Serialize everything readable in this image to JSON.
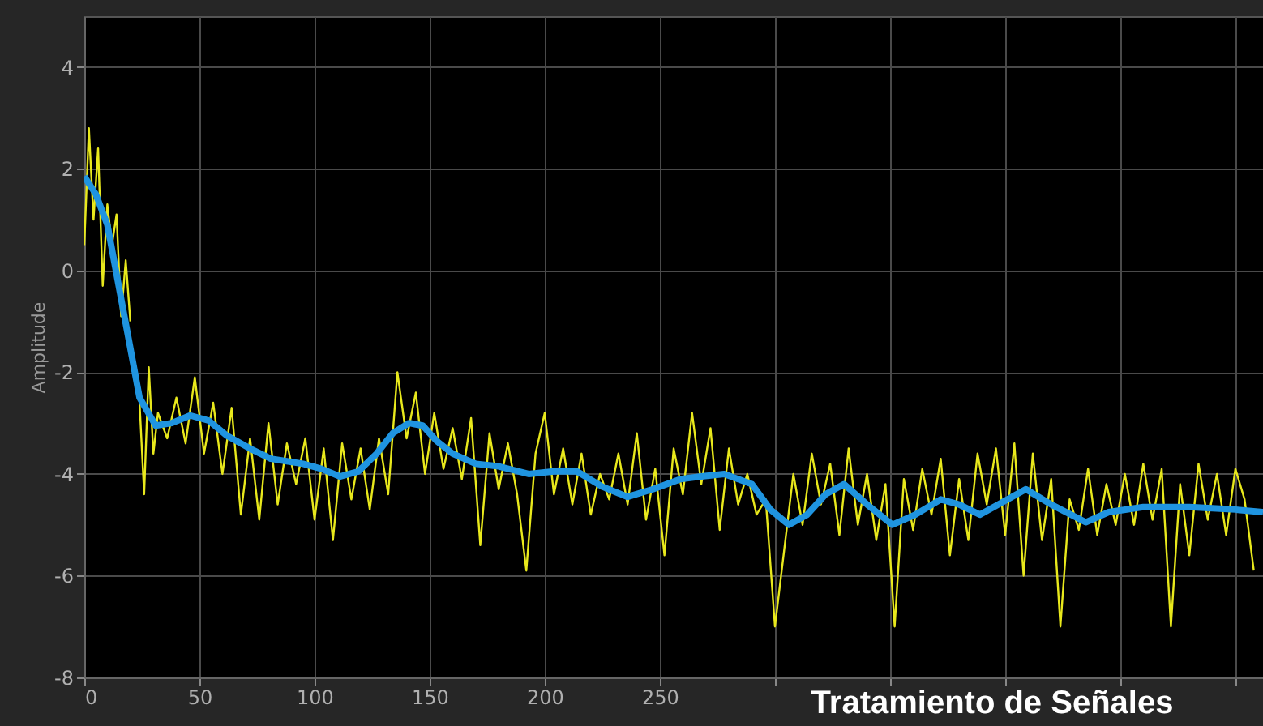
{
  "chart_data": {
    "type": "line",
    "ylabel": "Amplitude",
    "annotations": [
      "Tratamiento de Señales"
    ],
    "xlim": [
      0,
      512
    ],
    "ylim": [
      -8,
      5
    ],
    "xticks": [
      0,
      50,
      100,
      150,
      200,
      250,
      {
        "value": 300,
        "label": null
      },
      {
        "value": 350,
        "label": null
      },
      {
        "value": 400,
        "label": null
      },
      {
        "value": 450,
        "label": null
      },
      {
        "value": 500,
        "label": null
      }
    ],
    "yticks": [
      -8,
      -6,
      -4,
      -2,
      0,
      2,
      4
    ],
    "grid": true,
    "line_style": "solid",
    "series": [
      {
        "color": "#e8e81c",
        "x": [
          0,
          2,
          4,
          6,
          8,
          10,
          12,
          14,
          16,
          18,
          20,
          22,
          24,
          26,
          28,
          30,
          32,
          36,
          40,
          44,
          48,
          52,
          56,
          60,
          64,
          68,
          72,
          76,
          80,
          84,
          88,
          92,
          96,
          100,
          104,
          108,
          112,
          116,
          120,
          124,
          128,
          132,
          136,
          140,
          144,
          148,
          152,
          156,
          160,
          164,
          168,
          172,
          176,
          180,
          184,
          188,
          192,
          196,
          200,
          204,
          208,
          212,
          216,
          220,
          224,
          228,
          232,
          236,
          240,
          244,
          248,
          252,
          256,
          260,
          264,
          268,
          272,
          276,
          280,
          284,
          288,
          292,
          296,
          300,
          304,
          308,
          312,
          316,
          320,
          324,
          328,
          332,
          336,
          340,
          344,
          348,
          352,
          356,
          360,
          364,
          368,
          372,
          376,
          380,
          384,
          388,
          392,
          396,
          400,
          404,
          408,
          412,
          416,
          420,
          424,
          428,
          432,
          436,
          440,
          444,
          448,
          452,
          456,
          460,
          464,
          468,
          472,
          476,
          480,
          484,
          488,
          492,
          496,
          500,
          504,
          508
        ],
        "values": [
          0.5,
          2.8,
          1.0,
          2.4,
          -0.3,
          1.3,
          0.5,
          1.1,
          -0.9,
          0.2,
          -1.0,
          null,
          -2.6,
          -4.4,
          -1.9,
          -3.6,
          -2.8,
          -3.3,
          -2.5,
          -3.4,
          -2.1,
          -3.6,
          -2.6,
          -4.0,
          -2.7,
          -4.8,
          -3.3,
          -4.9,
          -3.0,
          -4.6,
          -3.4,
          -4.2,
          -3.3,
          -4.9,
          -3.5,
          -5.3,
          -3.4,
          -4.5,
          -3.5,
          -4.7,
          -3.3,
          -4.4,
          -2.0,
          -3.3,
          -2.4,
          -4.0,
          -2.8,
          -3.9,
          -3.1,
          -4.1,
          -2.9,
          -5.4,
          -3.2,
          -4.3,
          -3.4,
          -4.4,
          -5.9,
          -3.6,
          -2.8,
          -4.4,
          -3.5,
          -4.6,
          -3.6,
          -4.8,
          -4.0,
          -4.5,
          -3.6,
          -4.6,
          -3.2,
          -4.9,
          -3.9,
          -5.6,
          -3.5,
          -4.4,
          -2.8,
          -4.2,
          -3.1,
          -5.1,
          -3.5,
          -4.6,
          -4.0,
          -4.8,
          -4.5,
          -7.0,
          -5.5,
          -4.0,
          -5.0,
          -3.6,
          -4.6,
          -3.8,
          -5.2,
          -3.5,
          -5.0,
          -4.0,
          -5.3,
          -4.2,
          -7.0,
          -4.1,
          -5.1,
          -3.9,
          -4.8,
          -3.7,
          -5.6,
          -4.1,
          -5.3,
          -3.6,
          -4.6,
          -3.5,
          -5.2,
          -3.4,
          -6.0,
          -3.6,
          -5.3,
          -4.1,
          -7.0,
          -4.5,
          -5.1,
          -3.9,
          -5.2,
          -4.2,
          -5.0,
          -4.0,
          -5.0,
          -3.8,
          -4.9,
          -3.9,
          -7.0,
          -4.2,
          -5.6,
          -3.8,
          -4.9,
          -4.0,
          -5.2,
          -3.9,
          -4.5,
          -5.9
        ]
      },
      {
        "color": "#1f94e0",
        "x": [
          0,
          5,
          10,
          17,
          24,
          31,
          38,
          46,
          54,
          62,
          72,
          81,
          88,
          95,
          103,
          111,
          119,
          127,
          134,
          141,
          147,
          153,
          160,
          170,
          180,
          193,
          204,
          214,
          225,
          236,
          247,
          259,
          268,
          278,
          290,
          298,
          306,
          314,
          322,
          330,
          340,
          351,
          361,
          372,
          380,
          389,
          399,
          409,
          420,
          435,
          445,
          460,
          480,
          500,
          512
        ],
        "values": [
          1.85,
          1.5,
          0.9,
          -0.8,
          -2.5,
          -3.05,
          -3.0,
          -2.85,
          -2.95,
          -3.25,
          -3.5,
          -3.7,
          -3.75,
          -3.8,
          -3.9,
          -4.05,
          -3.95,
          -3.6,
          -3.2,
          -3.0,
          -3.05,
          -3.35,
          -3.6,
          -3.8,
          -3.85,
          -4.0,
          -3.95,
          -3.95,
          -4.25,
          -4.45,
          -4.3,
          -4.1,
          -4.05,
          -4.0,
          -4.2,
          -4.7,
          -5.0,
          -4.8,
          -4.4,
          -4.2,
          -4.6,
          -5.0,
          -4.8,
          -4.5,
          -4.6,
          -4.8,
          -4.55,
          -4.3,
          -4.6,
          -4.95,
          -4.75,
          -4.65,
          -4.65,
          -4.7,
          -4.75
        ]
      }
    ]
  }
}
